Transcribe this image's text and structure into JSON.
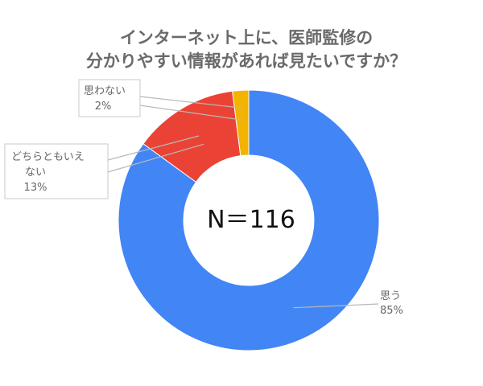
{
  "chart_data": {
    "type": "pie",
    "subtype": "donut",
    "title": [
      "インターネット上に、医師監修の",
      "分かりやすい情報があれば見たいですか？"
    ],
    "center_label": "N＝116",
    "slices": [
      {
        "id": "yes",
        "label": [
          "思う"
        ],
        "pct_label": "85%",
        "value": 85,
        "color": "#4285f4"
      },
      {
        "id": "neutral",
        "label": [
          "どちらともいえ",
          "ない"
        ],
        "pct_label": "13%",
        "value": 13,
        "color": "#ea4335"
      },
      {
        "id": "no",
        "label": [
          "思わない"
        ],
        "pct_label": "2%",
        "value": 2,
        "color": "#f2b400"
      }
    ]
  }
}
